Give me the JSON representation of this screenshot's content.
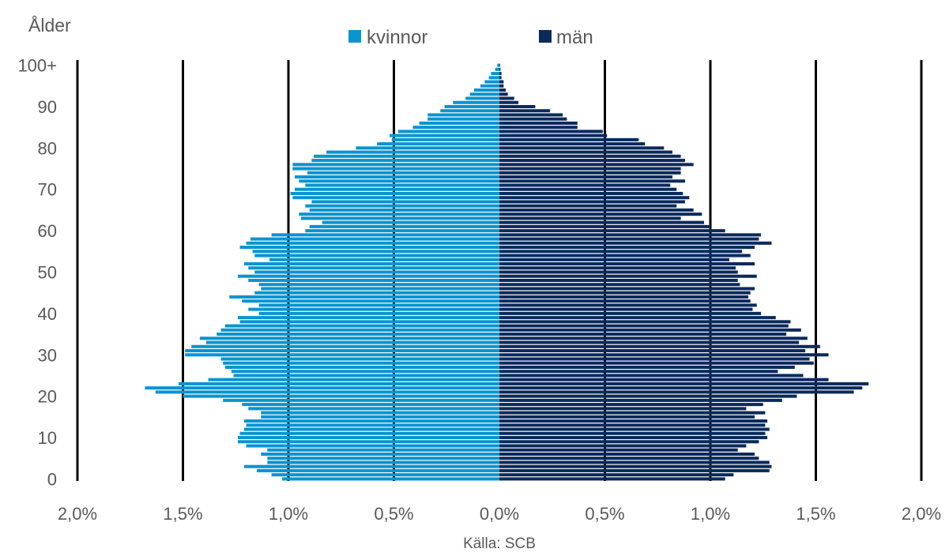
{
  "chart_data": {
    "type": "bar",
    "orientation": "horizontal",
    "subtype": "population-pyramid",
    "ylabel": "Ålder",
    "xlabel": "",
    "source": "Källa: SCB",
    "legend": {
      "position": "top-center"
    },
    "colors": {
      "kvinnor": "#0a94d0",
      "man": "#0a2a5c",
      "gridline": "#000000",
      "text": "#595959"
    },
    "grid": true,
    "x_ticks": [
      "2,0%",
      "1,5%",
      "1,0%",
      "0,5%",
      "0,0%",
      "0,5%",
      "1,0%",
      "1,5%",
      "2,0%"
    ],
    "y_ticks": [
      "100+",
      "90",
      "80",
      "70",
      "60",
      "50",
      "40",
      "30",
      "20",
      "10",
      "0"
    ],
    "xlim": [
      -2.0,
      2.0
    ],
    "ylim": [
      0,
      100
    ],
    "categories": [
      "0",
      "1",
      "2",
      "3",
      "4",
      "5",
      "6",
      "7",
      "8",
      "9",
      "10",
      "11",
      "12",
      "13",
      "14",
      "15",
      "16",
      "17",
      "18",
      "19",
      "20",
      "21",
      "22",
      "23",
      "24",
      "25",
      "26",
      "27",
      "28",
      "29",
      "30",
      "31",
      "32",
      "33",
      "34",
      "35",
      "36",
      "37",
      "38",
      "39",
      "40",
      "41",
      "42",
      "43",
      "44",
      "45",
      "46",
      "47",
      "48",
      "49",
      "50",
      "51",
      "52",
      "53",
      "54",
      "55",
      "56",
      "57",
      "58",
      "59",
      "60",
      "61",
      "62",
      "63",
      "64",
      "65",
      "66",
      "67",
      "68",
      "69",
      "70",
      "71",
      "72",
      "73",
      "74",
      "75",
      "76",
      "77",
      "78",
      "79",
      "80",
      "81",
      "82",
      "83",
      "84",
      "85",
      "86",
      "87",
      "88",
      "89",
      "90",
      "91",
      "92",
      "93",
      "94",
      "95",
      "96",
      "97",
      "98",
      "99",
      "100+"
    ],
    "series": [
      {
        "name": "kvinnor",
        "values": [
          1.03,
          1.08,
          1.15,
          1.21,
          1.1,
          1.1,
          1.13,
          1.1,
          1.2,
          1.24,
          1.24,
          1.23,
          1.21,
          1.2,
          1.21,
          1.13,
          1.13,
          1.19,
          1.22,
          1.31,
          1.5,
          1.63,
          1.68,
          1.52,
          1.38,
          1.26,
          1.27,
          1.3,
          1.31,
          1.32,
          1.49,
          1.49,
          1.46,
          1.39,
          1.42,
          1.34,
          1.32,
          1.3,
          1.23,
          1.24,
          1.14,
          1.19,
          1.14,
          1.22,
          1.28,
          1.16,
          1.13,
          1.14,
          1.19,
          1.24,
          1.16,
          1.19,
          1.21,
          1.09,
          1.16,
          1.17,
          1.23,
          1.2,
          1.18,
          1.08,
          0.92,
          0.9,
          0.84,
          0.94,
          0.95,
          0.9,
          0.92,
          0.89,
          0.98,
          0.99,
          0.97,
          0.92,
          0.95,
          0.97,
          0.91,
          0.98,
          0.98,
          0.89,
          0.88,
          0.82,
          0.68,
          0.58,
          0.51,
          0.52,
          0.48,
          0.41,
          0.38,
          0.34,
          0.34,
          0.28,
          0.26,
          0.22,
          0.16,
          0.14,
          0.12,
          0.09,
          0.07,
          0.05,
          0.04,
          0.02,
          0.01
        ]
      },
      {
        "name": "män",
        "values": [
          1.07,
          1.11,
          1.28,
          1.29,
          1.28,
          1.23,
          1.21,
          1.13,
          1.17,
          1.23,
          1.27,
          1.26,
          1.28,
          1.26,
          1.27,
          1.21,
          1.26,
          1.17,
          1.25,
          1.34,
          1.41,
          1.68,
          1.72,
          1.75,
          1.56,
          1.44,
          1.32,
          1.4,
          1.49,
          1.47,
          1.56,
          1.45,
          1.52,
          1.42,
          1.46,
          1.36,
          1.43,
          1.37,
          1.38,
          1.31,
          1.24,
          1.2,
          1.22,
          1.19,
          1.18,
          1.19,
          1.21,
          1.14,
          1.13,
          1.22,
          1.13,
          1.12,
          1.21,
          1.09,
          1.19,
          1.15,
          1.21,
          1.29,
          1.23,
          1.24,
          1.07,
          1.0,
          0.97,
          0.86,
          0.96,
          0.92,
          0.84,
          0.88,
          0.9,
          0.87,
          0.84,
          0.81,
          0.88,
          0.82,
          0.86,
          0.86,
          0.92,
          0.88,
          0.86,
          0.82,
          0.78,
          0.69,
          0.66,
          0.51,
          0.49,
          0.37,
          0.37,
          0.32,
          0.3,
          0.24,
          0.17,
          0.09,
          0.07,
          0.04,
          0.03,
          0.02,
          0.02,
          0.01,
          0.01,
          0.005,
          0.003
        ]
      }
    ]
  }
}
